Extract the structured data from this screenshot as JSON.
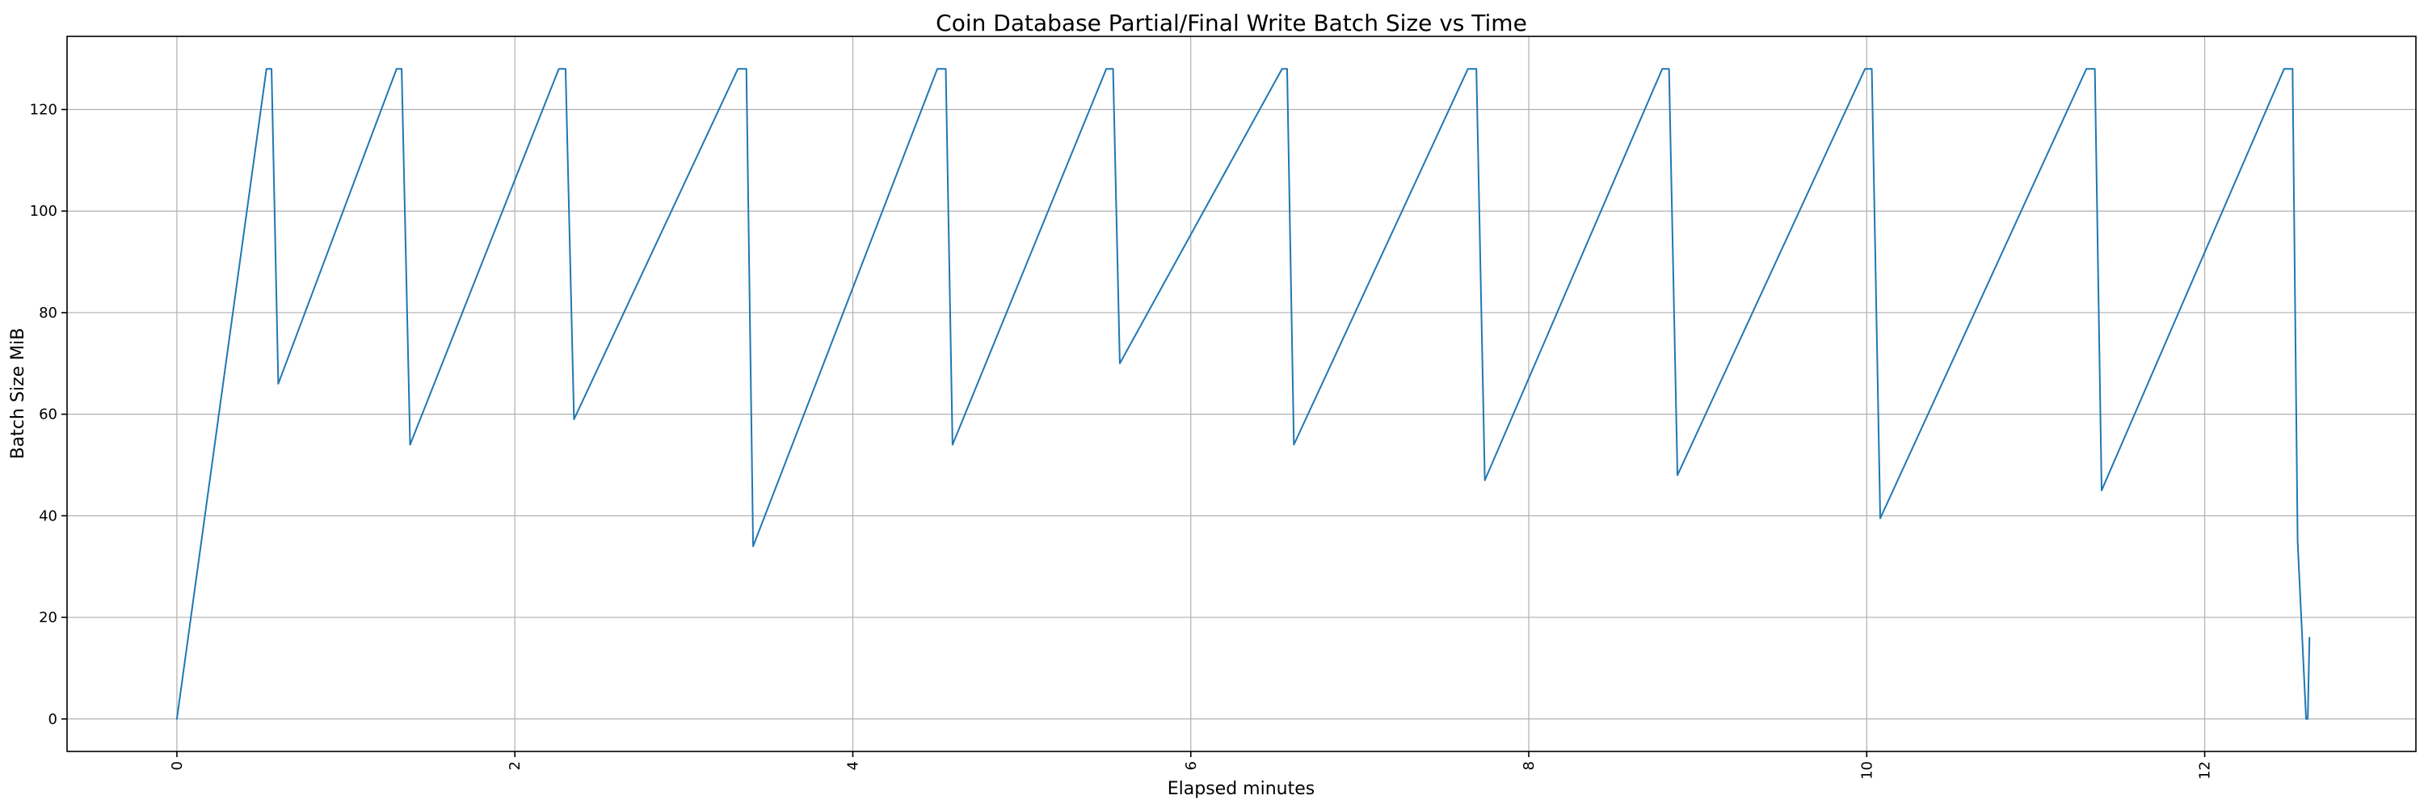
{
  "chart_data": {
    "type": "line",
    "title": "Coin Database Partial/Final Write Batch Size vs Time",
    "xlabel": "Elapsed minutes",
    "ylabel": "Batch Size MiB",
    "xlim": [
      -0.65,
      13.25
    ],
    "ylim": [
      -6.4,
      134.4
    ],
    "xticks": [
      0,
      2,
      4,
      6,
      8,
      10,
      12
    ],
    "xtick_labels": [
      "0",
      "2",
      "4",
      "6",
      "8",
      "10",
      "12"
    ],
    "yticks": [
      0,
      20,
      40,
      60,
      80,
      100,
      120
    ],
    "ytick_labels": [
      "0",
      "20",
      "40",
      "60",
      "80",
      "100",
      "120"
    ],
    "grid": true,
    "xtick_rotation": 90,
    "series": [
      {
        "color": "#1f77b4",
        "x": [
          0,
          0.53,
          0.56,
          0.6,
          1.3,
          1.33,
          1.38,
          2.26,
          2.3,
          2.35,
          3.32,
          3.37,
          3.41,
          4.5,
          4.55,
          4.59,
          5.5,
          5.54,
          5.58,
          6.54,
          6.57,
          6.61,
          7.64,
          7.69,
          7.74,
          8.79,
          8.83,
          8.88,
          9.99,
          10.03,
          10.08,
          11.3,
          11.35,
          11.39,
          12.47,
          12.52,
          12.55,
          12.6,
          12.61,
          12.62
        ],
        "y": [
          0,
          128,
          128,
          66,
          128,
          128,
          54,
          128,
          128,
          59,
          128,
          128,
          34,
          128,
          128,
          54,
          128,
          128,
          70,
          128,
          128,
          54,
          128,
          128,
          47,
          128,
          128,
          48,
          128,
          128,
          39.5,
          128,
          128,
          45,
          128,
          128,
          35,
          0,
          0,
          16
        ]
      }
    ]
  }
}
